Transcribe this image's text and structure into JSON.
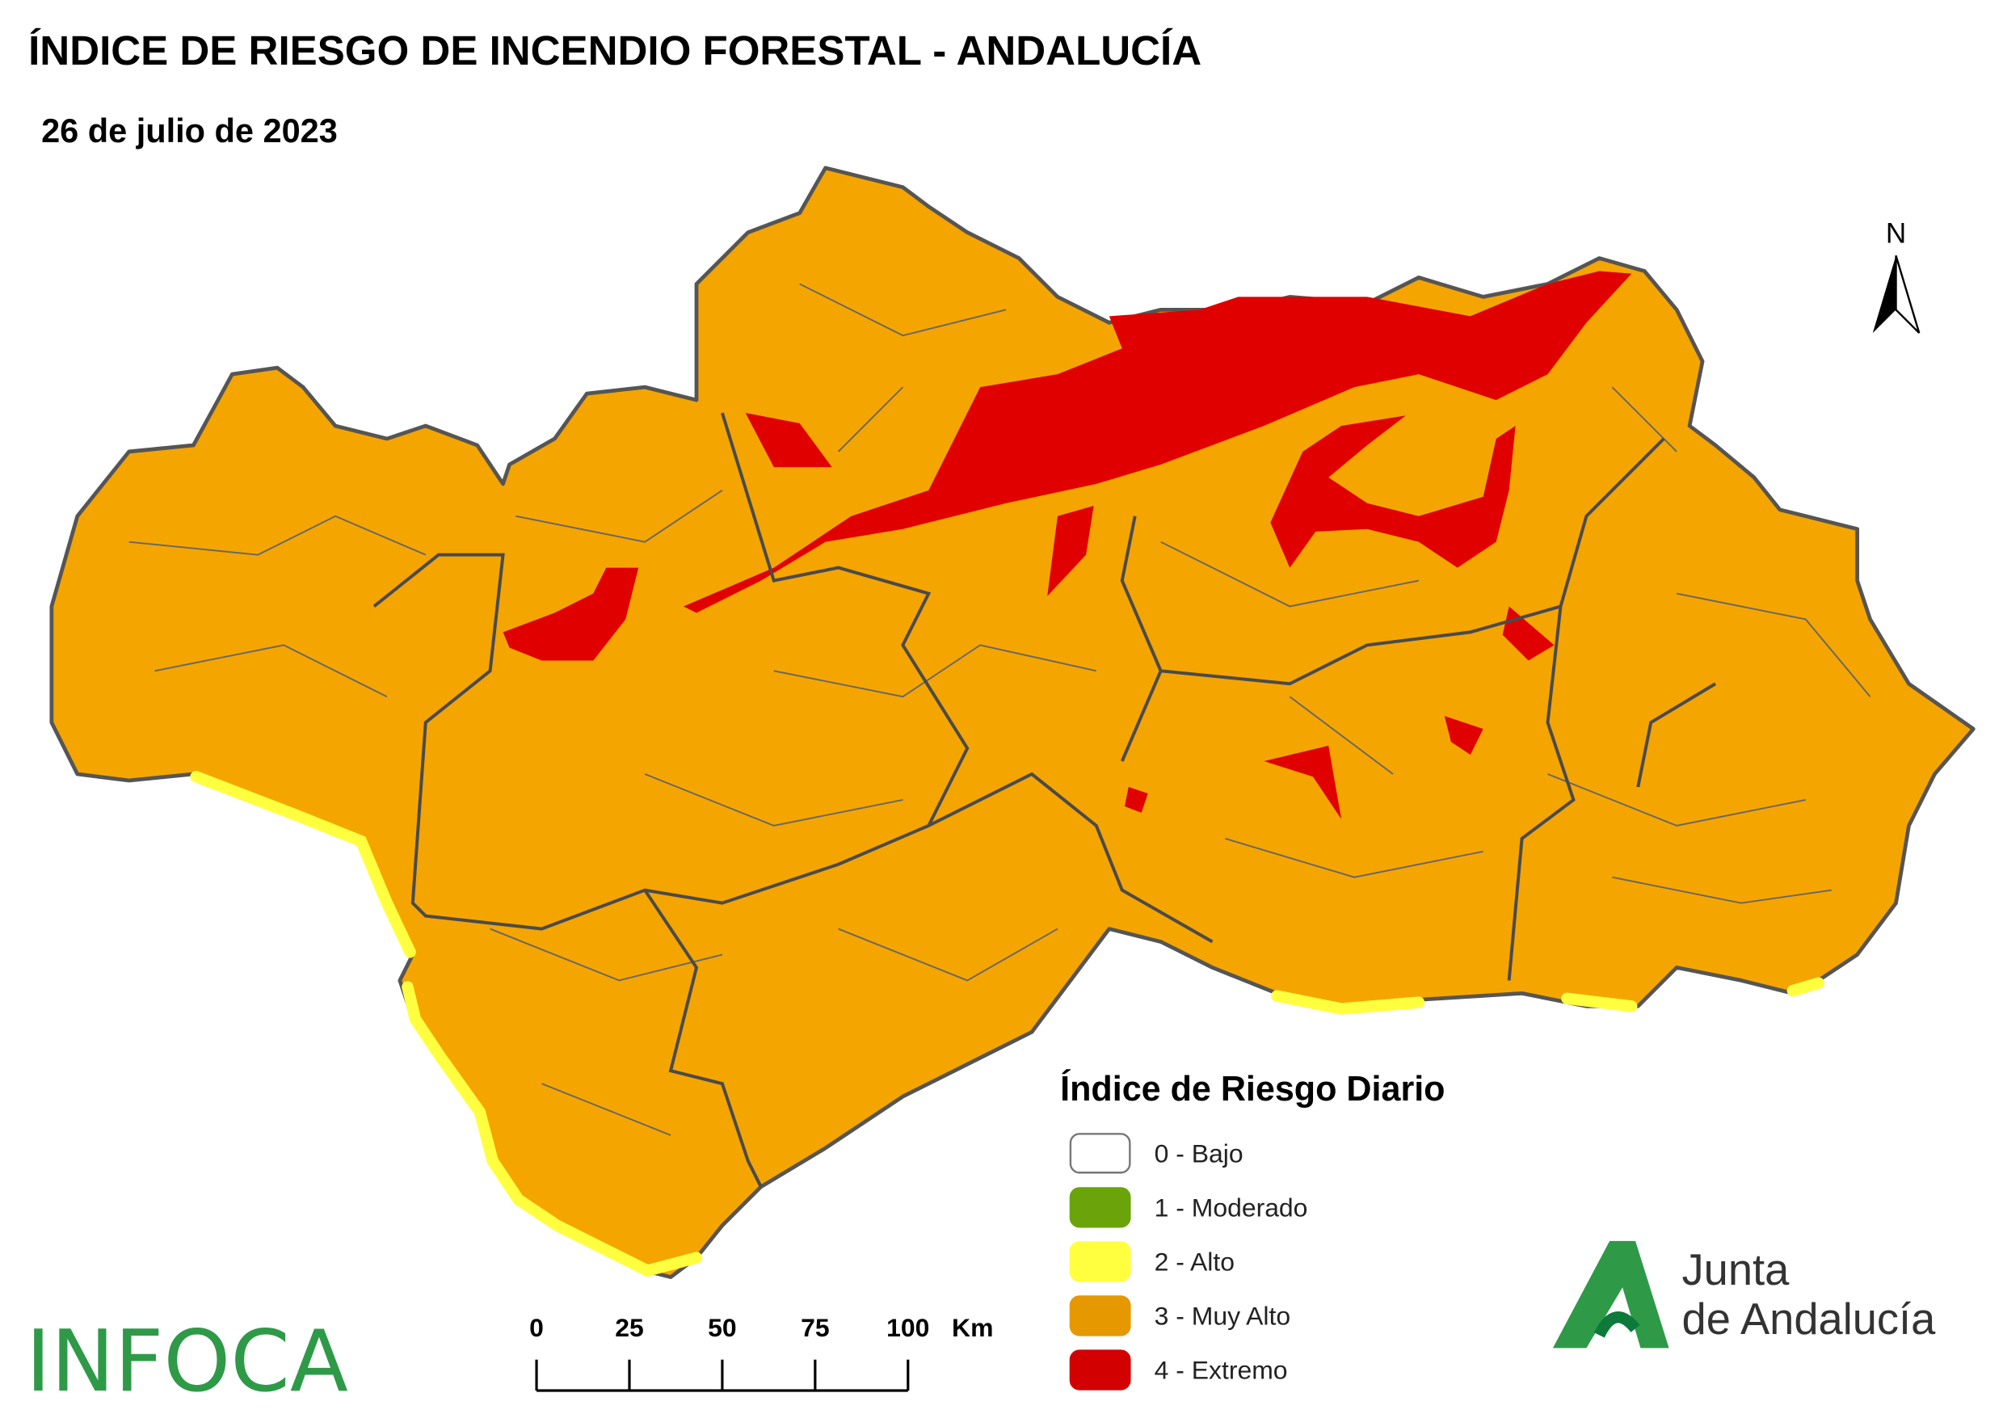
{
  "header": {
    "title": "ÍNDICE DE RIESGO DE INCENDIO FORESTAL - ANDALUCÍA",
    "subtitle": "26 de julio de 2023"
  },
  "legend": {
    "title": "Índice de Riesgo Diario",
    "items": [
      {
        "label": "0 - Bajo",
        "color": "#ffffff"
      },
      {
        "label": "1 - Moderado",
        "color": "#6aa40a"
      },
      {
        "label": "2 - Alto",
        "color": "#ffff40"
      },
      {
        "label": "3 - Muy Alto",
        "color": "#e69800"
      },
      {
        "label": "4 - Extremo",
        "color": "#d20000"
      }
    ]
  },
  "scale_bar": {
    "ticks": [
      0,
      25,
      50,
      75,
      100
    ],
    "unit": "Km"
  },
  "north": "N",
  "logos": {
    "infoca": "INFOCA",
    "junta_line1": "Junta",
    "junta_line2": "de Andalucía"
  }
}
